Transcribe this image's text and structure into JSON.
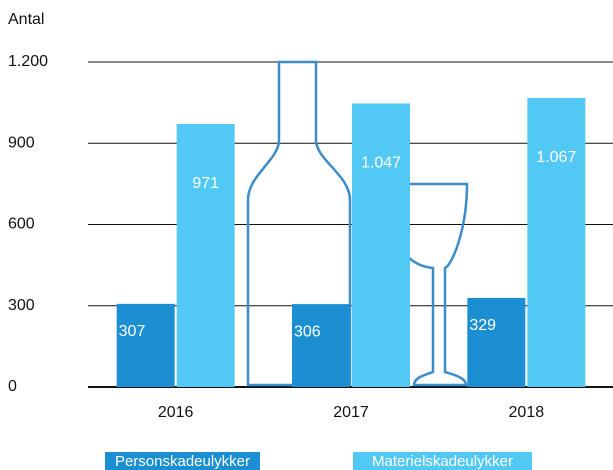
{
  "chart_data": {
    "type": "bar",
    "ylabel": "Antal",
    "categories": [
      "2016",
      "2017",
      "2018"
    ],
    "series": [
      {
        "name": "Personskadeulykker",
        "color": "#1b8fd1",
        "values": [
          307,
          306,
          329
        ],
        "value_labels": [
          "307",
          "306",
          "329"
        ]
      },
      {
        "name": "Materielskadeulykker",
        "color": "#52c8f5",
        "values": [
          971,
          1047,
          1067
        ],
        "value_labels": [
          "971",
          "1.047",
          "1.067"
        ]
      }
    ],
    "ylim": [
      0,
      1200
    ],
    "yticks": [
      0,
      300,
      600,
      900,
      {
        "value": 1200,
        "label": "1.200"
      }
    ],
    "grid": true
  }
}
